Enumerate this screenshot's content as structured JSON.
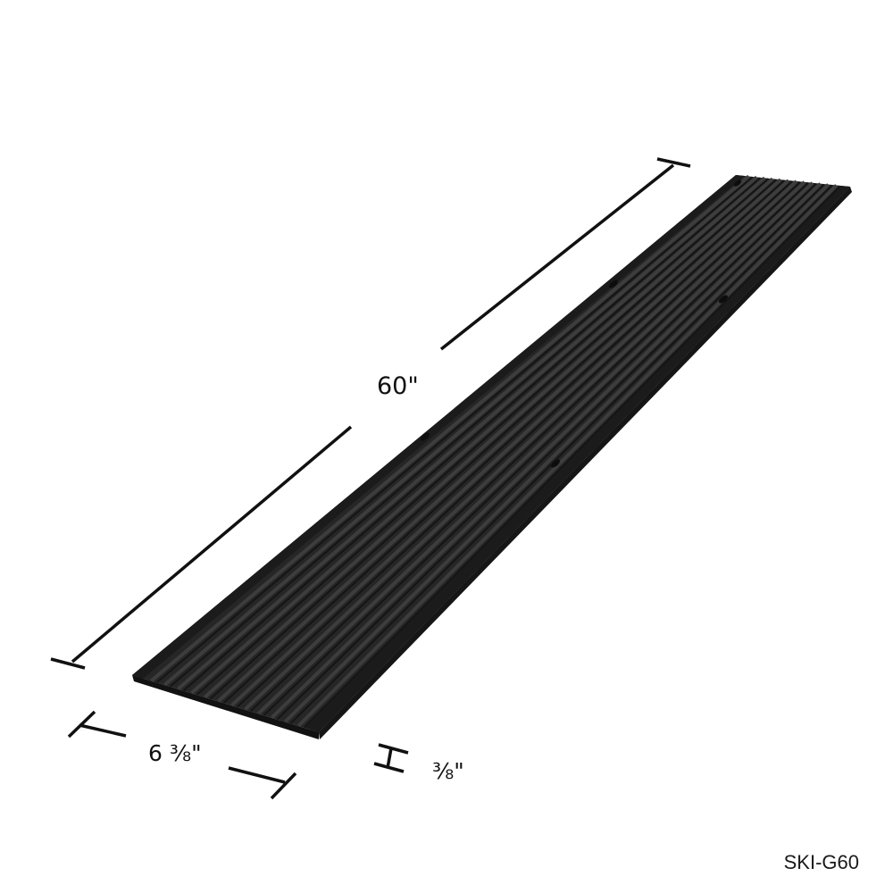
{
  "product": {
    "model": "SKI-G60",
    "color": "#262626",
    "rib_count": 12,
    "mounting_holes_visible": 4
  },
  "dimensions": {
    "length": "60\"",
    "width": "6 ⅜\"",
    "height": "⅜\""
  },
  "colors": {
    "background": "#ffffff",
    "line": "#111111",
    "board": "#262626",
    "board_edge": "#121212",
    "rib_highlight": "#3d3d3d"
  }
}
